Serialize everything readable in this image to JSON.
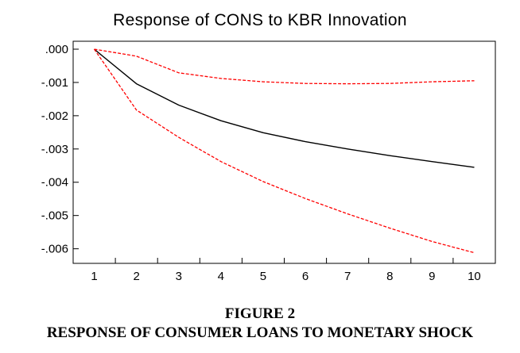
{
  "figure": {
    "label": "FIGURE 2",
    "caption": "RESPONSE OF CONSUMER LOANS TO MONETARY SHOCK"
  },
  "chart_data": {
    "type": "line",
    "title": "Response of CONS to KBR Innovation",
    "xlabel": "",
    "ylabel": "",
    "x": [
      1,
      2,
      3,
      4,
      5,
      6,
      7,
      8,
      9,
      10
    ],
    "xlim": [
      0.5,
      10.5
    ],
    "ylim": [
      -0.0062,
      0.0
    ],
    "x_tick_labels": [
      "1",
      "2",
      "3",
      "4",
      "5",
      "6",
      "7",
      "8",
      "9",
      "10"
    ],
    "y_ticks": [
      0.0,
      -0.001,
      -0.002,
      -0.003,
      -0.004,
      -0.005,
      -0.006
    ],
    "y_tick_labels": [
      ".000",
      "-.001",
      "-.002",
      "-.003",
      "-.004",
      "-.005",
      "-.006"
    ],
    "grid": false,
    "legend": "none",
    "series": [
      {
        "role": "response",
        "style": "solid",
        "color": "#000000",
        "values": [
          0.0,
          -0.00104,
          -0.00168,
          -0.00215,
          -0.00251,
          -0.00278,
          -0.003,
          -0.0032,
          -0.00338,
          -0.00355
        ]
      },
      {
        "role": "upper-band",
        "style": "dashed",
        "color": "#ff0000",
        "values": [
          0.0,
          -0.00021,
          -0.00071,
          -0.00088,
          -0.00098,
          -0.00103,
          -0.00104,
          -0.00103,
          -0.00098,
          -0.00095
        ]
      },
      {
        "role": "lower-band",
        "style": "dashed",
        "color": "#ff0000",
        "values": [
          0.0,
          -0.00183,
          -0.00265,
          -0.00338,
          -0.00398,
          -0.00449,
          -0.00495,
          -0.00538,
          -0.00578,
          -0.00612
        ]
      }
    ]
  }
}
